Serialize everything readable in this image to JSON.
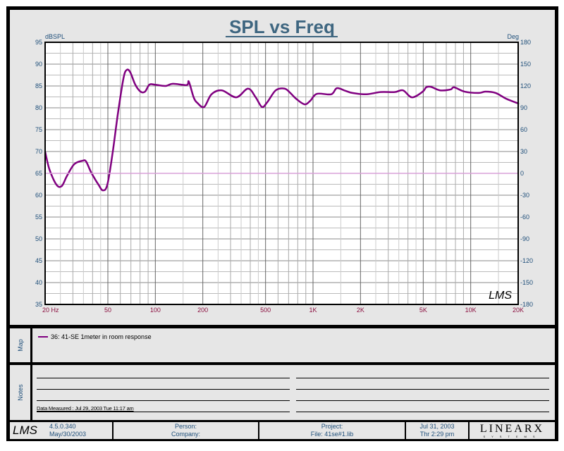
{
  "chart_data": {
    "type": "line",
    "title": "SPL vs Freq",
    "ylabel": "dBSPL",
    "y2label": "Deg",
    "xscale": "log",
    "xlim": [
      20,
      20000
    ],
    "ylim": [
      35,
      95
    ],
    "y2lim": [
      -180,
      180
    ],
    "grid": true,
    "x_ticks": [
      20,
      50,
      100,
      200,
      500,
      1000,
      2000,
      5000,
      10000,
      20000
    ],
    "x_tick_labels": [
      "20  Hz",
      "50",
      "100",
      "200",
      "500",
      "1K",
      "2K",
      "5K",
      "10K",
      "20K"
    ],
    "y_ticks": [
      95,
      90,
      85,
      80,
      75,
      70,
      65,
      60,
      55,
      50,
      45,
      40,
      35
    ],
    "y2_ticks": [
      180,
      150,
      120,
      90,
      60,
      30,
      0,
      -30,
      -60,
      -90,
      -120,
      -150,
      -180
    ],
    "series": [
      {
        "name": "36: 41-SE 1meter in room response",
        "color": "#800080",
        "axis": "left",
        "x": [
          20,
          21.3,
          23.6,
          25.5,
          27.5,
          30.6,
          34.7,
          36.4,
          39.2,
          43.6,
          46.5,
          49.6,
          53.5,
          58,
          62.9,
          66,
          69.4,
          74.6,
          80.6,
          86,
          91.7,
          99,
          116,
          129,
          158,
          163,
          175,
          185,
          204,
          227,
          264,
          326,
          387,
          433,
          474,
          513,
          580,
          660,
          718,
          780,
          883,
          960,
          1057,
          1304,
          1416,
          1602,
          1777,
          2180,
          2680,
          3300,
          3720,
          4240,
          4960,
          5220,
          5600,
          6390,
          7450,
          7850,
          9150,
          11200,
          12400,
          14400,
          16750,
          19700,
          20000
        ],
        "y": [
          70,
          65.9,
          62.4,
          62.1,
          64.4,
          67.1,
          67.9,
          67.7,
          65.2,
          62.4,
          61.1,
          62.4,
          69.5,
          78.9,
          86.9,
          88.7,
          88.1,
          85.3,
          83.7,
          83.7,
          85.3,
          85.3,
          85,
          85.5,
          85.2,
          86,
          82.4,
          81.1,
          80.2,
          83.1,
          84,
          82.4,
          84.4,
          82.4,
          80.2,
          81.3,
          84,
          84.4,
          83.4,
          82.1,
          80.8,
          81.6,
          83.2,
          83.1,
          84.5,
          83.9,
          83.4,
          83.1,
          83.6,
          83.6,
          84,
          82.4,
          83.7,
          84.7,
          84.8,
          84,
          84.2,
          84.7,
          83.7,
          83.4,
          83.7,
          83.4,
          82.1,
          81.1,
          81
        ]
      },
      {
        "name": "phase",
        "color": "#d8a0d8",
        "axis": "right",
        "x": [
          20,
          20000
        ],
        "y": [
          0,
          0
        ]
      }
    ]
  },
  "map": {
    "label": "Map",
    "legend": "36: 41-SE 1meter in room response"
  },
  "notes": {
    "label": "Notes",
    "measured": "Data Measured : Jul 29, 2003  Tue 11:17 am"
  },
  "footer": {
    "version": "4.5.0.340",
    "version_date": "May/30/2003",
    "person": "Person:",
    "company": "Company:",
    "project": "Project:",
    "file": "File: 41se#1.lib",
    "date": "Jul 31, 2003",
    "time": "Thr  2:29 pm",
    "logo_lms": "LMS",
    "logo_linearx": "LINEARX",
    "logo_systems": "SYSTEMS"
  },
  "watermark": "LMS"
}
